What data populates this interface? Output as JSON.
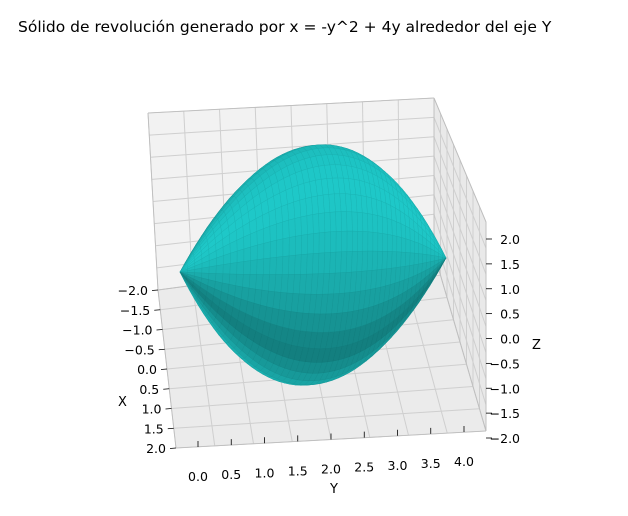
{
  "chart_data": {
    "type": "surface3d",
    "title": "Sólido de revolución generado por x = -y^2 + 4y alrededor del eje Y",
    "xlabel": "X",
    "ylabel": "Y",
    "zlabel": "Z",
    "xlim": [
      -2.0,
      2.0
    ],
    "ylim": [
      0.0,
      4.0
    ],
    "zlim": [
      -2.0,
      2.0
    ],
    "x_ticks": [
      "−2.0",
      "−1.5",
      "−1.0",
      "−0.5",
      "0.0",
      "0.5",
      "1.0",
      "1.5",
      "2.0"
    ],
    "y_ticks": [
      "0.0",
      "0.5",
      "1.0",
      "1.5",
      "2.0",
      "2.5",
      "3.0",
      "3.5",
      "4.0"
    ],
    "z_ticks": [
      "2.0",
      "1.5",
      "1.0",
      "0.5",
      "0.0",
      "−0.5",
      "−1.0",
      "−1.5",
      "−2.0"
    ],
    "function": "x = -y^2 + 4y",
    "revolution_axis": "Y",
    "surface_color": "#1ec8c8",
    "grid": true,
    "view": {
      "elev": 20,
      "azim": -15
    }
  }
}
